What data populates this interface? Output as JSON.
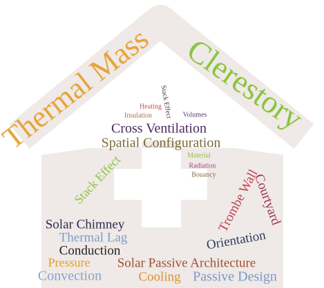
{
  "words": [
    {
      "text": "Thermal Mass",
      "color": "#e6a53a"
    },
    {
      "text": "Clerestory",
      "color": "#8cc43e"
    },
    {
      "text": "Stack Effect",
      "color": "#4a3a4a"
    },
    {
      "text": "Heating",
      "color": "#c0504d"
    },
    {
      "text": "Insulation",
      "color": "#a0704a"
    },
    {
      "text": "Volumes",
      "color": "#5a3a6e"
    },
    {
      "text": "Cross Ventilation",
      "color": "#4a2a5e"
    },
    {
      "text": "Spatial Configuration",
      "color": "#7a6a3a"
    },
    {
      "text": "Material",
      "color": "#8cc43e"
    },
    {
      "text": "Radiation",
      "color": "#9b4a8a"
    },
    {
      "text": "Bouancy",
      "color": "#8a6a4a"
    },
    {
      "text": "Stack Effect",
      "color": "#8cc43e"
    },
    {
      "text": "Trombe Wall",
      "color": "#c04050"
    },
    {
      "text": "Courtyard",
      "color": "#a03060"
    },
    {
      "text": "Solar Chimney",
      "color": "#2e2a4e"
    },
    {
      "text": "Thermal Lag",
      "color": "#7aa0c4"
    },
    {
      "text": "Conduction",
      "color": "#222222"
    },
    {
      "text": "Orientation",
      "color": "#2c3e5a"
    },
    {
      "text": "Pressure",
      "color": "#e8a020"
    },
    {
      "text": "Solar Passive Architecture",
      "color": "#a05030"
    },
    {
      "text": "Convection",
      "color": "#86a6c8"
    },
    {
      "text": "Cooling",
      "color": "#dc9430"
    },
    {
      "text": "Passive Design",
      "color": "#7a9ac8"
    }
  ]
}
